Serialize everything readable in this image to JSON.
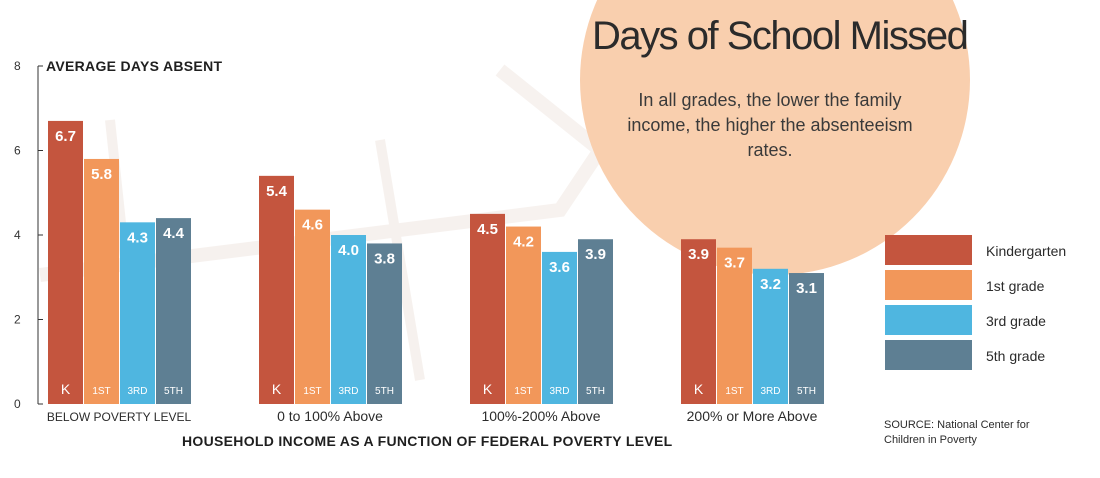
{
  "chart_data": {
    "type": "bar",
    "title": "Days of School Missed",
    "subtitle": "In all grades, the lower the family income, the higher the absenteeism rates.",
    "ylabel": "AVERAGE DAYS ABSENT",
    "xlabel": "HOUSEHOLD INCOME AS A FUNCTION OF FEDERAL POVERTY LEVEL",
    "ylim": [
      0,
      8
    ],
    "yticks": [
      0,
      2,
      4,
      6,
      8
    ],
    "categories": [
      "BELOW POVERTY LEVEL",
      "0 to 100% Above",
      "100%-200% Above",
      "200% or More Above"
    ],
    "series": [
      {
        "name": "Kindergarten",
        "short": "K",
        "color": "#c4553e",
        "values": [
          6.7,
          5.4,
          4.5,
          3.9
        ]
      },
      {
        "name": "1st grade",
        "short": "1ST",
        "color": "#f2975a",
        "values": [
          5.8,
          4.6,
          4.2,
          3.7
        ]
      },
      {
        "name": "3rd grade",
        "short": "3RD",
        "color": "#4fb6e0",
        "values": [
          4.3,
          4.0,
          3.6,
          3.2
        ]
      },
      {
        "name": "5th grade",
        "short": "5TH",
        "color": "#5e7f93",
        "values": [
          4.4,
          3.8,
          3.9,
          3.1
        ]
      }
    ],
    "value_labels": [
      [
        "6.7",
        "5.4",
        "4.5",
        "3.9"
      ],
      [
        "5.8",
        "4.6",
        "4.2",
        "3.7"
      ],
      [
        "4.3",
        "4.0",
        "3.6",
        "3.2"
      ],
      [
        "4.4",
        "3.8",
        "3.9",
        "3.1"
      ]
    ],
    "legend_position": "right",
    "source": "SOURCE: National Center for Children in Poverty"
  }
}
